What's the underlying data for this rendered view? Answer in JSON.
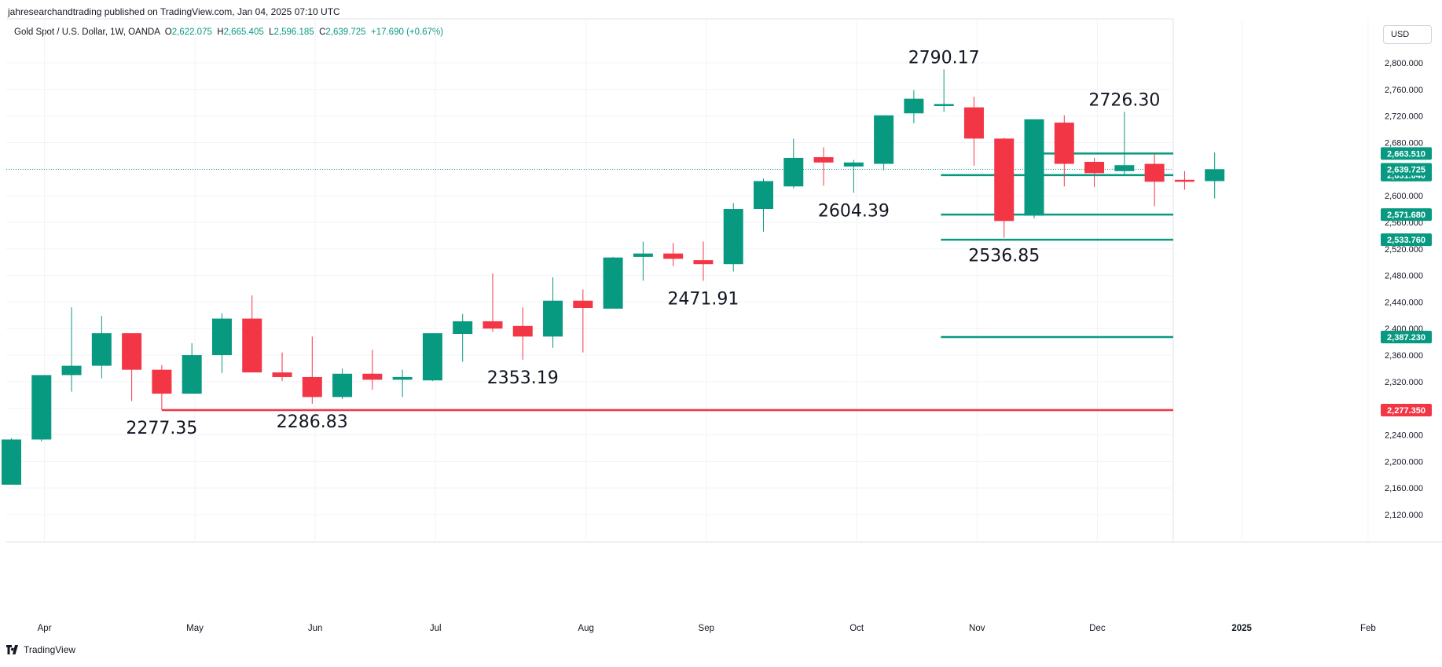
{
  "header": {
    "published": "jahresearchandtrading published on TradingView.com, Jan 04, 2025 07:10 UTC"
  },
  "legend": {
    "symbol": "Gold Spot / U.S. Dollar, 1W, OANDA",
    "o_label": "O",
    "o_value": "2,622.075",
    "h_label": "H",
    "h_value": "2,665.405",
    "l_label": "L",
    "l_value": "2,596.185",
    "c_label": "C",
    "c_value": "2,639.725",
    "change": "+17.690 (+0.67%)"
  },
  "currency_button": {
    "label": "USD"
  },
  "footer": {
    "brand": "TradingView",
    "logo": "tradingview-logo-icon"
  },
  "colors": {
    "up": "#089981",
    "down": "#F23645",
    "axis_text": "#131722",
    "grid": "#f0f3fa"
  },
  "chart_data": {
    "type": "candlestick",
    "title": "Gold Spot / U.S. Dollar, 1W, OANDA",
    "ylim": [
      2090,
      2845
    ],
    "y_ticks": [
      2120,
      2160,
      2200,
      2240,
      2280,
      2320,
      2360,
      2400,
      2440,
      2480,
      2520,
      2560,
      2600,
      2640,
      2680,
      2720,
      2760,
      2800
    ],
    "y_tick_labels": [
      "2,120.000",
      "2,160.000",
      "2,200.000",
      "2,240.000",
      "2,280.000",
      "2,320.000",
      "2,360.000",
      "2,400.000",
      "2,440.000",
      "2,480.000",
      "2,520.000",
      "2,560.000",
      "2,600.000",
      "2,640.000",
      "2,680.000",
      "2,720.000",
      "2,760.000",
      "2,800.000"
    ],
    "x_labels": [
      {
        "label": "Apr",
        "week": 1.1
      },
      {
        "label": "May",
        "week": 6.1
      },
      {
        "label": "Jun",
        "week": 10.1
      },
      {
        "label": "Jul",
        "week": 14.1
      },
      {
        "label": "Aug",
        "week": 19.1
      },
      {
        "label": "Sep",
        "week": 23.1
      },
      {
        "label": "Oct",
        "week": 28.1
      },
      {
        "label": "Nov",
        "week": 32.1
      },
      {
        "label": "Dec",
        "week": 36.1
      },
      {
        "label": "2025",
        "week": 40.9
      },
      {
        "label": "Feb",
        "week": 45.1
      }
    ],
    "candles": [
      {
        "o": 2165,
        "h": 2235,
        "l": 2165,
        "c": 2233
      },
      {
        "o": 2233,
        "h": 2330,
        "l": 2230,
        "c": 2330
      },
      {
        "o": 2330,
        "h": 2432,
        "l": 2305,
        "c": 2344
      },
      {
        "o": 2344,
        "h": 2419,
        "l": 2325,
        "c": 2393
      },
      {
        "o": 2393,
        "h": 2393,
        "l": 2291,
        "c": 2338
      },
      {
        "o": 2338,
        "h": 2345,
        "l": 2277.35,
        "c": 2302
      },
      {
        "o": 2302,
        "h": 2378,
        "l": 2302,
        "c": 2360
      },
      {
        "o": 2360,
        "h": 2423,
        "l": 2333,
        "c": 2415
      },
      {
        "o": 2415,
        "h": 2450,
        "l": 2334,
        "c": 2334
      },
      {
        "o": 2334,
        "h": 2364,
        "l": 2321,
        "c": 2327
      },
      {
        "o": 2327,
        "h": 2388,
        "l": 2286.83,
        "c": 2297
      },
      {
        "o": 2297,
        "h": 2340,
        "l": 2294,
        "c": 2332
      },
      {
        "o": 2332,
        "h": 2368,
        "l": 2308,
        "c": 2323
      },
      {
        "o": 2323,
        "h": 2338,
        "l": 2297,
        "c": 2327
      },
      {
        "o": 2322,
        "h": 2393,
        "l": 2321,
        "c": 2393
      },
      {
        "o": 2392,
        "h": 2422,
        "l": 2350,
        "c": 2411
      },
      {
        "o": 2411,
        "h": 2483,
        "l": 2395,
        "c": 2400
      },
      {
        "o": 2404,
        "h": 2432,
        "l": 2353.19,
        "c": 2388
      },
      {
        "o": 2388,
        "h": 2477,
        "l": 2371,
        "c": 2442
      },
      {
        "o": 2442,
        "h": 2459,
        "l": 2364,
        "c": 2431
      },
      {
        "o": 2430,
        "h": 2508,
        "l": 2430,
        "c": 2507
      },
      {
        "o": 2508,
        "h": 2531,
        "l": 2472,
        "c": 2513
      },
      {
        "o": 2513,
        "h": 2529,
        "l": 2494,
        "c": 2505
      },
      {
        "o": 2503,
        "h": 2531,
        "l": 2471.91,
        "c": 2497
      },
      {
        "o": 2497,
        "h": 2589,
        "l": 2486,
        "c": 2580
      },
      {
        "o": 2580,
        "h": 2626,
        "l": 2546,
        "c": 2622
      },
      {
        "o": 2614,
        "h": 2686,
        "l": 2611,
        "c": 2657
      },
      {
        "o": 2658,
        "h": 2673,
        "l": 2615,
        "c": 2650
      },
      {
        "o": 2644,
        "h": 2654,
        "l": 2604.39,
        "c": 2650
      },
      {
        "o": 2648,
        "h": 2721,
        "l": 2638,
        "c": 2721
      },
      {
        "o": 2724,
        "h": 2759,
        "l": 2709,
        "c": 2746
      },
      {
        "o": 2735,
        "h": 2790.17,
        "l": 2726,
        "c": 2738
      },
      {
        "o": 2733,
        "h": 2749,
        "l": 2645,
        "c": 2686
      },
      {
        "o": 2686,
        "h": 2687,
        "l": 2536.85,
        "c": 2562
      },
      {
        "o": 2570,
        "h": 2715,
        "l": 2566,
        "c": 2715
      },
      {
        "o": 2710,
        "h": 2721,
        "l": 2614,
        "c": 2648
      },
      {
        "o": 2651,
        "h": 2657,
        "l": 2613,
        "c": 2634
      },
      {
        "o": 2637,
        "h": 2726.3,
        "l": 2632,
        "c": 2646
      },
      {
        "o": 2648,
        "h": 2664,
        "l": 2584,
        "c": 2621
      },
      {
        "o": 2624,
        "h": 2637,
        "l": 2609,
        "c": 2621
      },
      {
        "o": 2622,
        "h": 2665,
        "l": 2596,
        "c": 2640
      }
    ],
    "current_price": 2639.725,
    "price_levels": [
      {
        "value": 2663.51,
        "label": "2,663.510",
        "color": "#089981",
        "from_week": 33.9
      },
      {
        "value": 2631.04,
        "label": "2,631.040",
        "color": "#089981",
        "from_week": 30.9
      },
      {
        "value": 2571.68,
        "label": "2,571.680",
        "color": "#089981",
        "from_week": 30.9
      },
      {
        "value": 2533.76,
        "label": "2,533.760",
        "color": "#089981",
        "from_week": 30.9
      },
      {
        "value": 2387.23,
        "label": "2,387.230",
        "color": "#089981",
        "from_week": 30.9
      },
      {
        "value": 2277.35,
        "label": "2,277.350",
        "color": "#F23645",
        "from_week": 5.0
      }
    ],
    "current_label": {
      "value": 2639.725,
      "label": "2,639.725",
      "color": "#089981"
    },
    "annotations": [
      {
        "text": "2790.17",
        "week": 31.0,
        "value": 2790.17,
        "pos": "above"
      },
      {
        "text": "2726.30",
        "week": 37.0,
        "value": 2726.3,
        "pos": "above"
      },
      {
        "text": "2604.39",
        "week": 28.0,
        "value": 2604.39,
        "pos": "below"
      },
      {
        "text": "2536.85",
        "week": 33.0,
        "value": 2536.85,
        "pos": "below"
      },
      {
        "text": "2471.91",
        "week": 23.0,
        "value": 2471.91,
        "pos": "below"
      },
      {
        "text": "2353.19",
        "week": 17.0,
        "value": 2353.19,
        "pos": "below"
      },
      {
        "text": "2286.83",
        "week": 10.0,
        "value": 2286.83,
        "pos": "below"
      },
      {
        "text": "2277.35",
        "week": 5.0,
        "value": 2277.35,
        "pos": "below"
      }
    ]
  }
}
